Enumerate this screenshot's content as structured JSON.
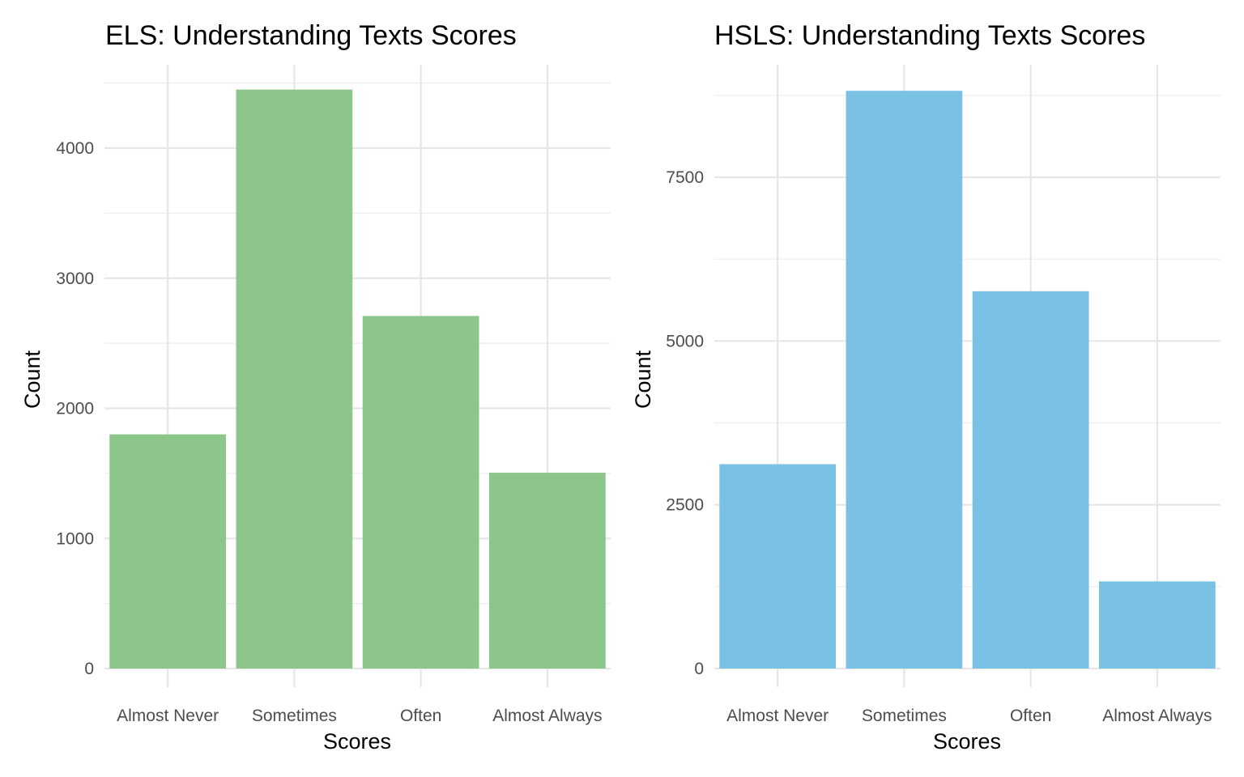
{
  "chart_data": [
    {
      "type": "bar",
      "title": "ELS: Understanding Texts Scores",
      "xlabel": "Scores",
      "ylabel": "Count",
      "categories": [
        "Almost Never",
        "Sometimes",
        "Often",
        "Almost Always"
      ],
      "values": [
        1800,
        4450,
        2710,
        1505
      ],
      "ylim": [
        0,
        4500
      ],
      "yticks": [
        0,
        1000,
        2000,
        3000,
        4000
      ],
      "bar_color": "#8CC68A",
      "grid": true,
      "legend": "none"
    },
    {
      "type": "bar",
      "title": "HSLS: Understanding Texts Scores",
      "xlabel": "Scores",
      "ylabel": "Count",
      "categories": [
        "Almost Never",
        "Sometimes",
        "Often",
        "Almost Always"
      ],
      "values": [
        3120,
        8820,
        5760,
        1330
      ],
      "ylim": [
        0,
        9000
      ],
      "yticks": [
        0,
        2500,
        5000,
        7500
      ],
      "bar_color": "#7AC2E4",
      "grid": true,
      "legend": "none"
    }
  ]
}
